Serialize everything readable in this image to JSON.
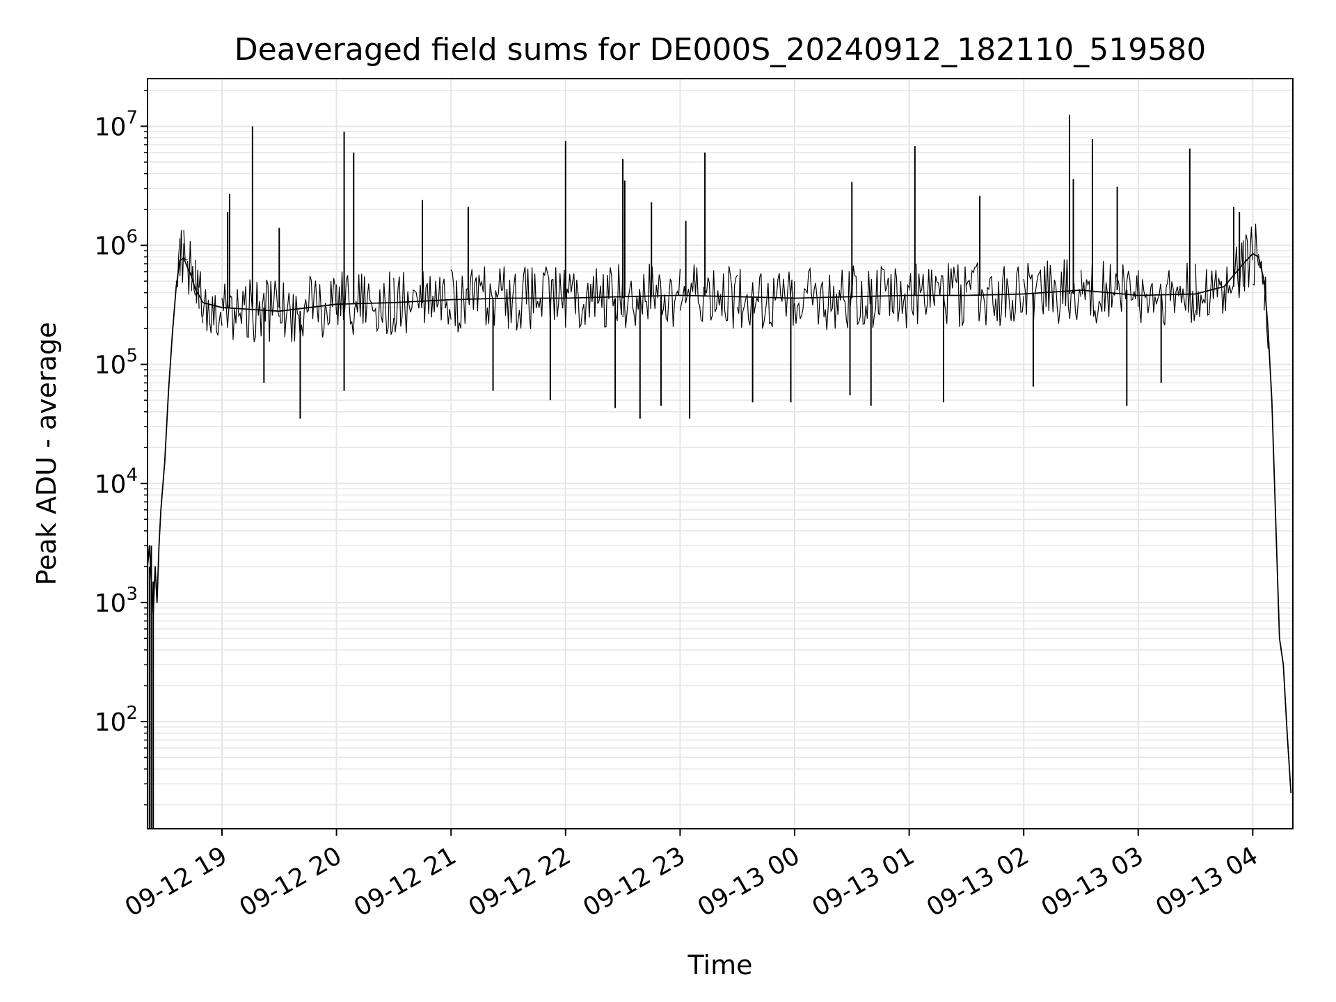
{
  "chart_data": {
    "type": "line",
    "title": "Deaveraged field sums for DE000S_20240912_182110_519580",
    "xlabel": "Time",
    "ylabel": "Peak ADU - average",
    "yscale": "log",
    "grid": true,
    "line_color": "#000000",
    "grid_color": "#e6e6e6",
    "xlim": [
      "09-12 18:21",
      "09-13 04:21"
    ],
    "ylim_exponent": [
      1.1,
      7.4
    ],
    "x_ticks": [
      {
        "label": "09-12 19",
        "t": "09-12 19:00"
      },
      {
        "label": "09-12 20",
        "t": "09-12 20:00"
      },
      {
        "label": "09-12 21",
        "t": "09-12 21:00"
      },
      {
        "label": "09-12 22",
        "t": "09-12 22:00"
      },
      {
        "label": "09-12 23",
        "t": "09-12 23:00"
      },
      {
        "label": "09-13 00",
        "t": "09-13 00:00"
      },
      {
        "label": "09-13 01",
        "t": "09-13 01:00"
      },
      {
        "label": "09-13 02",
        "t": "09-13 02:00"
      },
      {
        "label": "09-13 03",
        "t": "09-13 03:00"
      },
      {
        "label": "09-13 04",
        "t": "09-13 04:00"
      }
    ],
    "y_ticks": [
      {
        "base": "10",
        "exp": "2",
        "value": 100
      },
      {
        "base": "10",
        "exp": "3",
        "value": 1000
      },
      {
        "base": "10",
        "exp": "4",
        "value": 10000
      },
      {
        "base": "10",
        "exp": "5",
        "value": 100000
      },
      {
        "base": "10",
        "exp": "6",
        "value": 1000000
      },
      {
        "base": "10",
        "exp": "7",
        "value": 10000000
      }
    ],
    "series": [
      {
        "style": "line",
        "points": [
          [
            "09-12 18:21",
            2000
          ],
          [
            "09-12 18:22",
            3000
          ],
          [
            "09-12 18:23",
            1500
          ],
          [
            "09-12 18:24",
            800
          ],
          [
            "09-12 18:25",
            2000
          ],
          [
            "09-12 18:26",
            1000
          ],
          [
            "09-12 18:27",
            3000
          ],
          [
            "09-12 18:28",
            6000
          ],
          [
            "09-12 18:30",
            15000
          ],
          [
            "09-12 18:32",
            60000
          ],
          [
            "09-12 18:34",
            180000
          ],
          [
            "09-12 18:36",
            450000
          ],
          [
            "09-12 18:38",
            750000
          ],
          [
            "09-12 18:40",
            780000
          ],
          [
            "09-12 18:42",
            650000
          ],
          [
            "09-12 18:44",
            550000
          ],
          [
            "09-12 18:46",
            430000
          ],
          [
            "09-12 18:48",
            380000
          ],
          [
            "09-12 18:50",
            330000
          ],
          [
            "09-12 19:00",
            300000
          ],
          [
            "09-12 19:30",
            280000
          ],
          [
            "09-12 20:00",
            320000
          ],
          [
            "09-12 20:30",
            330000
          ],
          [
            "09-12 21:00",
            350000
          ],
          [
            "09-12 21:30",
            360000
          ],
          [
            "09-12 22:00",
            360000
          ],
          [
            "09-12 22:30",
            370000
          ],
          [
            "09-12 23:00",
            380000
          ],
          [
            "09-12 23:30",
            370000
          ],
          [
            "09-13 00:00",
            360000
          ],
          [
            "09-13 00:30",
            370000
          ],
          [
            "09-13 01:00",
            380000
          ],
          [
            "09-13 01:30",
            380000
          ],
          [
            "09-13 02:00",
            390000
          ],
          [
            "09-13 02:30",
            420000
          ],
          [
            "09-13 03:00",
            380000
          ],
          [
            "09-13 03:30",
            390000
          ],
          [
            "09-13 03:45",
            450000
          ],
          [
            "09-13 03:55",
            700000
          ],
          [
            "09-13 04:00",
            850000
          ],
          [
            "09-13 04:03",
            800000
          ],
          [
            "09-13 04:06",
            500000
          ],
          [
            "09-13 04:08",
            200000
          ],
          [
            "09-13 04:10",
            50000
          ],
          [
            "09-13 04:12",
            5000
          ],
          [
            "09-13 04:14",
            500
          ],
          [
            "09-13 04:16",
            300
          ],
          [
            "09-13 04:18",
            80
          ],
          [
            "09-13 04:20",
            25
          ]
        ]
      },
      {
        "style": "spikes",
        "points": [
          [
            "09-12 19:03",
            1900000
          ],
          [
            "09-12 19:04",
            2700000
          ],
          [
            "09-12 19:16",
            10000000
          ],
          [
            "09-12 19:30",
            1400000
          ],
          [
            "09-12 20:04",
            9000000
          ],
          [
            "09-12 20:09",
            6000000
          ],
          [
            "09-12 20:45",
            2400000
          ],
          [
            "09-12 21:09",
            2100000
          ],
          [
            "09-12 22:00",
            7500000
          ],
          [
            "09-12 22:30",
            5300000
          ],
          [
            "09-12 22:31",
            3500000
          ],
          [
            "09-12 22:45",
            2300000
          ],
          [
            "09-12 23:03",
            1600000
          ],
          [
            "09-12 23:13",
            6000000
          ],
          [
            "09-13 00:30",
            3400000
          ],
          [
            "09-13 01:03",
            6800000
          ],
          [
            "09-13 01:37",
            2600000
          ],
          [
            "09-13 02:24",
            12500000
          ],
          [
            "09-13 02:26",
            3600000
          ],
          [
            "09-13 02:36",
            7800000
          ],
          [
            "09-13 02:49",
            3100000
          ],
          [
            "09-13 03:27",
            6500000
          ],
          [
            "09-13 03:50",
            2100000
          ],
          [
            "09-13 03:53",
            1900000
          ]
        ]
      },
      {
        "style": "dips",
        "points": [
          [
            "09-12 18:22",
            12
          ],
          [
            "09-12 18:23",
            12
          ],
          [
            "09-12 18:24",
            12
          ],
          [
            "09-12 19:22",
            70000
          ],
          [
            "09-12 19:41",
            35000
          ],
          [
            "09-12 20:04",
            60000
          ],
          [
            "09-12 21:22",
            60000
          ],
          [
            "09-12 21:52",
            50000
          ],
          [
            "09-12 22:26",
            43000
          ],
          [
            "09-12 22:39",
            35000
          ],
          [
            "09-12 22:50",
            45000
          ],
          [
            "09-12 23:05",
            35000
          ],
          [
            "09-12 23:38",
            48000
          ],
          [
            "09-12 23:58",
            48000
          ],
          [
            "09-13 00:29",
            55000
          ],
          [
            "09-13 00:40",
            45000
          ],
          [
            "09-13 01:18",
            48000
          ],
          [
            "09-13 02:05",
            65000
          ],
          [
            "09-13 02:54",
            45000
          ],
          [
            "09-13 03:12",
            70000
          ]
        ]
      }
    ]
  }
}
